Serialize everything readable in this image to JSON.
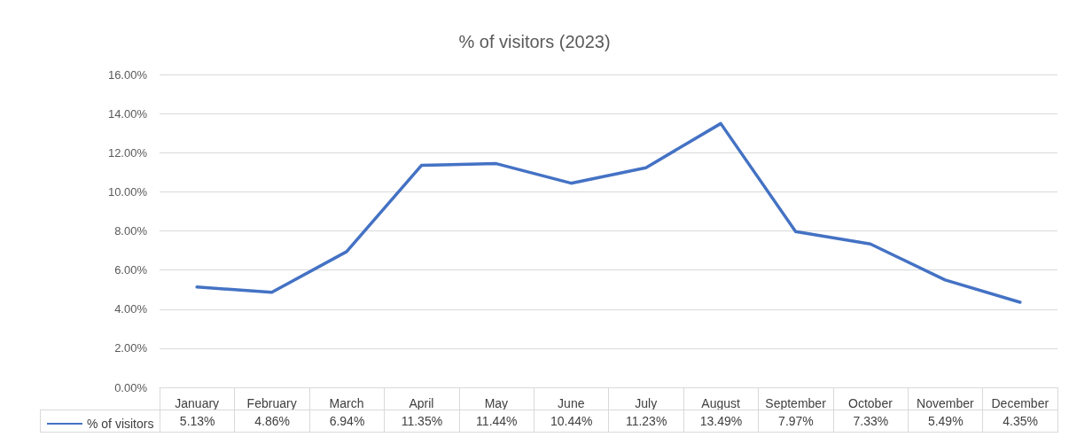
{
  "chart_data": {
    "type": "line",
    "title": "% of visitors (2023)",
    "categories": [
      "January",
      "February",
      "March",
      "April",
      "May",
      "June",
      "July",
      "August",
      "September",
      "October",
      "November",
      "December"
    ],
    "series": [
      {
        "name": "% of visitors",
        "color": "#4472c4",
        "values": [
          5.13,
          4.86,
          6.94,
          11.35,
          11.44,
          10.44,
          11.23,
          13.49,
          7.97,
          7.33,
          5.49,
          4.35
        ],
        "value_labels": [
          "5.13%",
          "4.86%",
          "6.94%",
          "11.35%",
          "11.44%",
          "10.44%",
          "11.23%",
          "13.49%",
          "7.97%",
          "7.33%",
          "5.49%",
          "4.35%"
        ]
      }
    ],
    "ylim": [
      0,
      16
    ],
    "yticks": [
      {
        "value": 0,
        "label": "0.00%"
      },
      {
        "value": 2,
        "label": "2.00%"
      },
      {
        "value": 4,
        "label": "4.00%"
      },
      {
        "value": 6,
        "label": "6.00%"
      },
      {
        "value": 8,
        "label": "8.00%"
      },
      {
        "value": 10,
        "label": "10.00%"
      },
      {
        "value": 12,
        "label": "12.00%"
      },
      {
        "value": 14,
        "label": "14.00%"
      },
      {
        "value": 16,
        "label": "16.00%"
      }
    ],
    "grid": "y",
    "legend": "bottom left",
    "marker": "none",
    "line_style": "solid"
  }
}
